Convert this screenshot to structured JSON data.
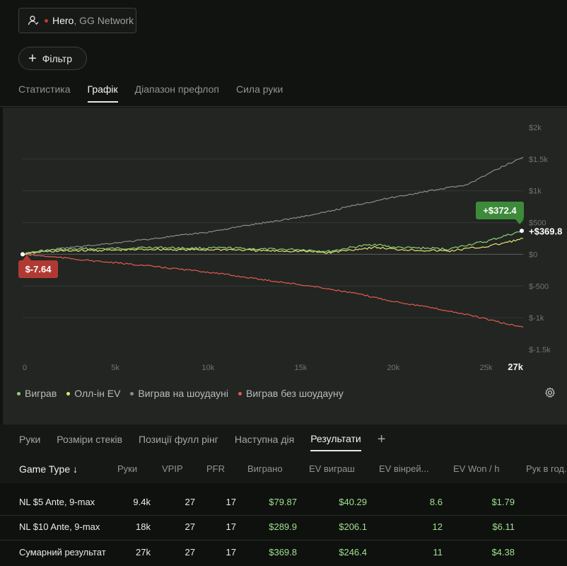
{
  "player": {
    "name": "Hero",
    "network": "GG Network",
    "icon": "user-icon"
  },
  "filter": {
    "label": "Фільтр"
  },
  "top_tabs": [
    "Статистика",
    "Графік",
    "Діапазон префлоп",
    "Сила руки"
  ],
  "top_tabs_active": 1,
  "chart_data": {
    "type": "line",
    "x_ticks": [
      "0",
      "5k",
      "10k",
      "15k",
      "20k",
      "25k",
      "27k"
    ],
    "x_tick_values": [
      0,
      5000,
      10000,
      15000,
      20000,
      25000,
      27000
    ],
    "y_ticks": [
      "$2k",
      "$1.5k",
      "$1k",
      "$500",
      "$0",
      "$-500",
      "$-1k",
      "$-1.5k"
    ],
    "y_tick_values": [
      2000,
      1500,
      1000,
      500,
      0,
      -500,
      -1000,
      -1500
    ],
    "xlim": [
      0,
      27000
    ],
    "ylim": [
      -1500,
      2000
    ],
    "grid": true,
    "legend_position": "bottom-left",
    "series": [
      {
        "name": "Виграв",
        "color": "#8fd07a",
        "x": [
          0,
          1000,
          3000,
          5000,
          7000,
          9000,
          11000,
          13000,
          15000,
          16500,
          18000,
          19000,
          20000,
          21000,
          22000,
          23000,
          24000,
          25000,
          26000,
          27000
        ],
        "y": [
          0,
          55,
          85,
          90,
          110,
          95,
          100,
          80,
          75,
          45,
          120,
          160,
          110,
          100,
          95,
          80,
          150,
          200,
          290,
          369.8
        ]
      },
      {
        "name": "Олл-ін EV",
        "color": "#e6e26a",
        "x": [
          0,
          1000,
          3000,
          5000,
          7000,
          9000,
          11000,
          13000,
          15000,
          16500,
          18000,
          19000,
          20000,
          21000,
          22000,
          23000,
          24000,
          25000,
          26000,
          27000
        ],
        "y": [
          0,
          40,
          60,
          65,
          80,
          70,
          75,
          55,
          50,
          25,
          80,
          110,
          80,
          70,
          60,
          50,
          90,
          120,
          180,
          246.4
        ]
      },
      {
        "name": "Виграв на шоудауні",
        "color": "#8a8d8a",
        "x": [
          0,
          2000,
          4000,
          6000,
          8000,
          10000,
          12000,
          14000,
          16000,
          18000,
          20000,
          22000,
          24000,
          25000,
          26000,
          27000
        ],
        "y": [
          0,
          90,
          150,
          210,
          280,
          350,
          450,
          540,
          640,
          780,
          900,
          1000,
          1100,
          1250,
          1400,
          1530
        ]
      },
      {
        "name": "Виграв без шоудауну",
        "color": "#e25b50",
        "x": [
          0,
          2000,
          4000,
          6000,
          8000,
          10000,
          12000,
          14000,
          16000,
          18000,
          20000,
          22000,
          24000,
          25000,
          26000,
          27000
        ],
        "y": [
          0,
          -50,
          -110,
          -160,
          -220,
          -280,
          -360,
          -440,
          -520,
          -620,
          -740,
          -840,
          -950,
          -1020,
          -1090,
          -1150
        ]
      }
    ],
    "annotations": [
      {
        "label": "+$372.4",
        "style": "green-badge"
      },
      {
        "label": "+$369.8",
        "style": "end-label"
      },
      {
        "label": "$-7.64",
        "style": "red-badge"
      }
    ]
  },
  "legend": [
    {
      "label": "Виграв",
      "color": "#8fd07a"
    },
    {
      "label": "Олл-ін EV",
      "color": "#e6e26a"
    },
    {
      "label": "Виграв на шоудауні",
      "color": "#8a8d8a"
    },
    {
      "label": "Виграв без шоудауну",
      "color": "#e25b50"
    }
  ],
  "bottom_tabs": [
    "Руки",
    "Розміри стеків",
    "Позиції фулл рінг",
    "Наступна дія",
    "Результати"
  ],
  "bottom_tabs_active": 4,
  "table": {
    "headers": [
      "Game Type ↓",
      "Руки",
      "VPIP",
      "PFR",
      "Виграно",
      "EV виграш",
      "EV вінрей...",
      "EV Won / h",
      "Рук в год..."
    ],
    "rows": [
      [
        "NL $5 Ante, 9-max",
        "9.4k",
        "27",
        "17",
        "$79.87",
        "$40.29",
        "8.6",
        "$1.79"
      ],
      [
        "NL $10 Ante, 9-max",
        "18k",
        "27",
        "17",
        "$289.9",
        "$206.1",
        "12",
        "$6.11"
      ],
      [
        "Сумарний результат",
        "27k",
        "27",
        "17",
        "$369.8",
        "$246.4",
        "11",
        "$4.38"
      ]
    ]
  }
}
